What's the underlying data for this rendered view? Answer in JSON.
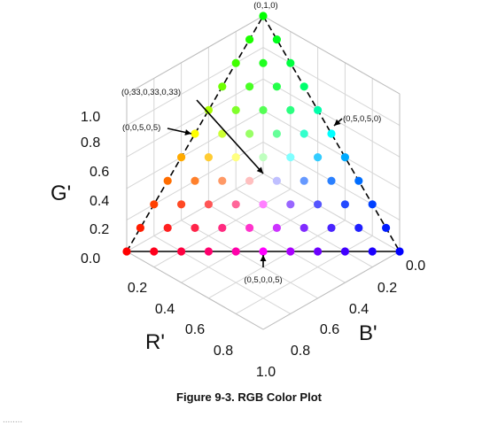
{
  "chart_data": {
    "type": "scatter",
    "projection": "3d-isometric",
    "resolution": 10,
    "points_rule": "all (r, g, b) with r + g + b = 1 on a 0.1 lattice; dot color = rgb(r, g, b) scaled by 1/max(r, g, b)",
    "axes": {
      "g": {
        "label": "G'",
        "ticks": [
          "0.0",
          "0.2",
          "0.4",
          "0.6",
          "0.8",
          "1.0"
        ],
        "range": [
          0,
          1
        ]
      },
      "r": {
        "label": "R'",
        "ticks": [
          "0.2",
          "0.4",
          "0.6",
          "0.8",
          "1.0"
        ],
        "range": [
          0,
          1
        ]
      },
      "b": {
        "label": "B'",
        "ticks": [
          "0.0",
          "0.2",
          "0.4",
          "0.6",
          "0.8"
        ],
        "range": [
          0,
          1
        ]
      }
    },
    "annotations": [
      {
        "text": "(0,1,0)",
        "point": [
          0,
          1,
          0
        ]
      },
      {
        "text": "(0,33,0,33,0,33)",
        "point": [
          0.33,
          0.33,
          0.33
        ]
      },
      {
        "text": "(0,0,5,0,5)",
        "point": [
          0,
          0.5,
          0.5
        ]
      },
      {
        "text": "(0,5,0,5,0)",
        "point": [
          0.5,
          0.5,
          0
        ]
      },
      {
        "text": "(0,5,0,0,5)",
        "point": [
          0.5,
          0,
          0.5
        ]
      }
    ],
    "grid": true,
    "caption": "Figure 9-3. RGB Color Plot"
  }
}
